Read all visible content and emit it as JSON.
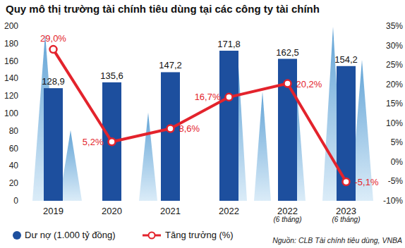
{
  "chart_data": {
    "type": "bar",
    "title": "Quy mô thị trường tài chính tiêu dùng tại các công ty tài chính",
    "categories": [
      "2019",
      "2020",
      "2021",
      "2022",
      "2022 (6 tháng)",
      "2023 (6 tháng)"
    ],
    "series": [
      {
        "name": "Dư nợ (1.000 tỷ đồng)",
        "type": "bar",
        "color": "#1d4f9e",
        "values": [
          128.9,
          135.6,
          147.2,
          171.8,
          162.5,
          154.2
        ],
        "value_labels": [
          "128,9",
          "135,6",
          "147,2",
          "171,8",
          "162,5",
          "154,2"
        ]
      },
      {
        "name": "Tăng trưởng (%)",
        "type": "line",
        "axis": "y2",
        "color": "#e3232c",
        "marker": "circle",
        "values": [
          29.0,
          5.2,
          8.6,
          16.7,
          20.2,
          -5.1
        ],
        "value_labels": [
          "29,0%",
          "5,2%",
          "8,6%",
          "16,7%",
          "20,2%",
          "-5,1%"
        ]
      }
    ],
    "ylim": [
      0,
      200
    ],
    "yticks": [
      0,
      20,
      40,
      60,
      80,
      100,
      120,
      140,
      160,
      180,
      200
    ],
    "y2lim": [
      -10,
      35
    ],
    "y2ticks": [
      {
        "value": -10,
        "label": "-10%"
      },
      {
        "value": -5,
        "label": "-5%"
      },
      {
        "value": 0,
        "label": "0%"
      },
      {
        "value": 5,
        "label": "5%"
      },
      {
        "value": 10,
        "label": "10%"
      },
      {
        "value": 15,
        "label": "15%"
      },
      {
        "value": 20,
        "label": "20%"
      },
      {
        "value": 25,
        "label": "25%"
      },
      {
        "value": 30,
        "label": "30%"
      },
      {
        "value": 35,
        "label": "35%"
      }
    ],
    "grid": false,
    "data_labels": true,
    "legend": "bottom-left",
    "source": "Nguồn: CLB Tài chính tiêu dùng, VNBA"
  }
}
